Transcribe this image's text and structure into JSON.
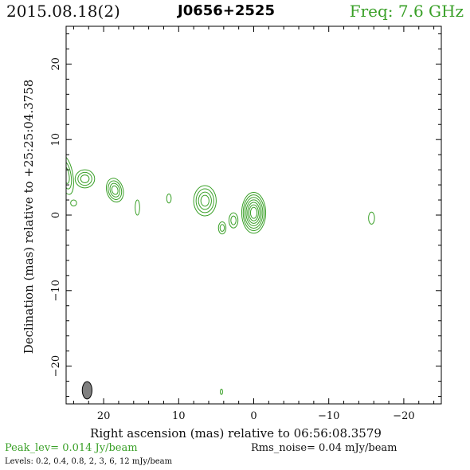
{
  "header": {
    "date": "2015.08.18(2)",
    "source": "J0656+2525",
    "freq": "Freq: 7.6 GHz"
  },
  "footer": {
    "peak": "Peak_lev=  0.014 Jy/beam",
    "rms": "Rms_noise= 0.04 mJy/beam",
    "levels": "Levels: 0.2,  0.4,  0.8,    2,    3,    6,   12  mJy/beam"
  },
  "colors": {
    "contour": "#3aa028",
    "beam": "#808080",
    "axis": "#000000"
  },
  "chart_data": {
    "type": "contour",
    "xlabel": "Right ascension (mas) relative to 06:56:08.3579",
    "ylabel": "Declination (mas) relative to +25:25:04.3758",
    "xlim": [
      25,
      -25
    ],
    "ylim": [
      -25,
      25
    ],
    "x_ticks": [
      20,
      10,
      0,
      -10,
      -20
    ],
    "x_tick_labels": [
      "20",
      "10",
      "0",
      "−10",
      "−20"
    ],
    "y_ticks": [
      20,
      10,
      0,
      -10,
      -20
    ],
    "y_tick_labels": [
      "20",
      "10",
      "0",
      "−10",
      "−20"
    ],
    "contour_levels_mJy_per_beam": [
      0.2,
      0.4,
      0.8,
      2,
      3,
      6,
      12
    ],
    "components": [
      {
        "x": 0.0,
        "y": 0.3,
        "ra": 1.6,
        "rb": 2.7,
        "angle": 0,
        "n_contours": 7
      },
      {
        "x": 6.5,
        "y": 1.9,
        "ra": 1.5,
        "rb": 2.0,
        "angle": 0,
        "n_contours": 4
      },
      {
        "x": 18.5,
        "y": 3.3,
        "ra": 1.1,
        "rb": 1.6,
        "angle": 15,
        "n_contours": 4
      },
      {
        "x": 2.7,
        "y": -0.7,
        "ra": 0.6,
        "rb": 1.0,
        "angle": 0,
        "n_contours": 2
      },
      {
        "x": 4.2,
        "y": -1.7,
        "ra": 0.5,
        "rb": 0.8,
        "angle": 0,
        "n_contours": 2
      },
      {
        "x": 22.5,
        "y": 4.8,
        "ra": 1.3,
        "rb": 1.2,
        "angle": 0,
        "n_contours": 3
      },
      {
        "x": 25.0,
        "y": 5.3,
        "ra": 0.9,
        "rb": 2.6,
        "angle": 10,
        "n_contours": 3
      },
      {
        "x": 24.0,
        "y": 1.6,
        "ra": 0.4,
        "rb": 0.4,
        "angle": 0,
        "n_contours": 1
      },
      {
        "x": 15.5,
        "y": 1.0,
        "ra": 0.3,
        "rb": 1.0,
        "angle": 0,
        "n_contours": 1
      },
      {
        "x": 11.3,
        "y": 2.2,
        "ra": 0.3,
        "rb": 0.6,
        "angle": 0,
        "n_contours": 1
      },
      {
        "x": -15.7,
        "y": -0.4,
        "ra": 0.4,
        "rb": 0.8,
        "angle": 0,
        "n_contours": 1
      },
      {
        "x": 4.3,
        "y": -23.4,
        "ra": 0.15,
        "rb": 0.35,
        "angle": 0,
        "n_contours": 1
      }
    ],
    "beam": {
      "x": 22.2,
      "y": -23.2,
      "major": 2.3,
      "minor": 1.3,
      "angle": 0
    }
  }
}
